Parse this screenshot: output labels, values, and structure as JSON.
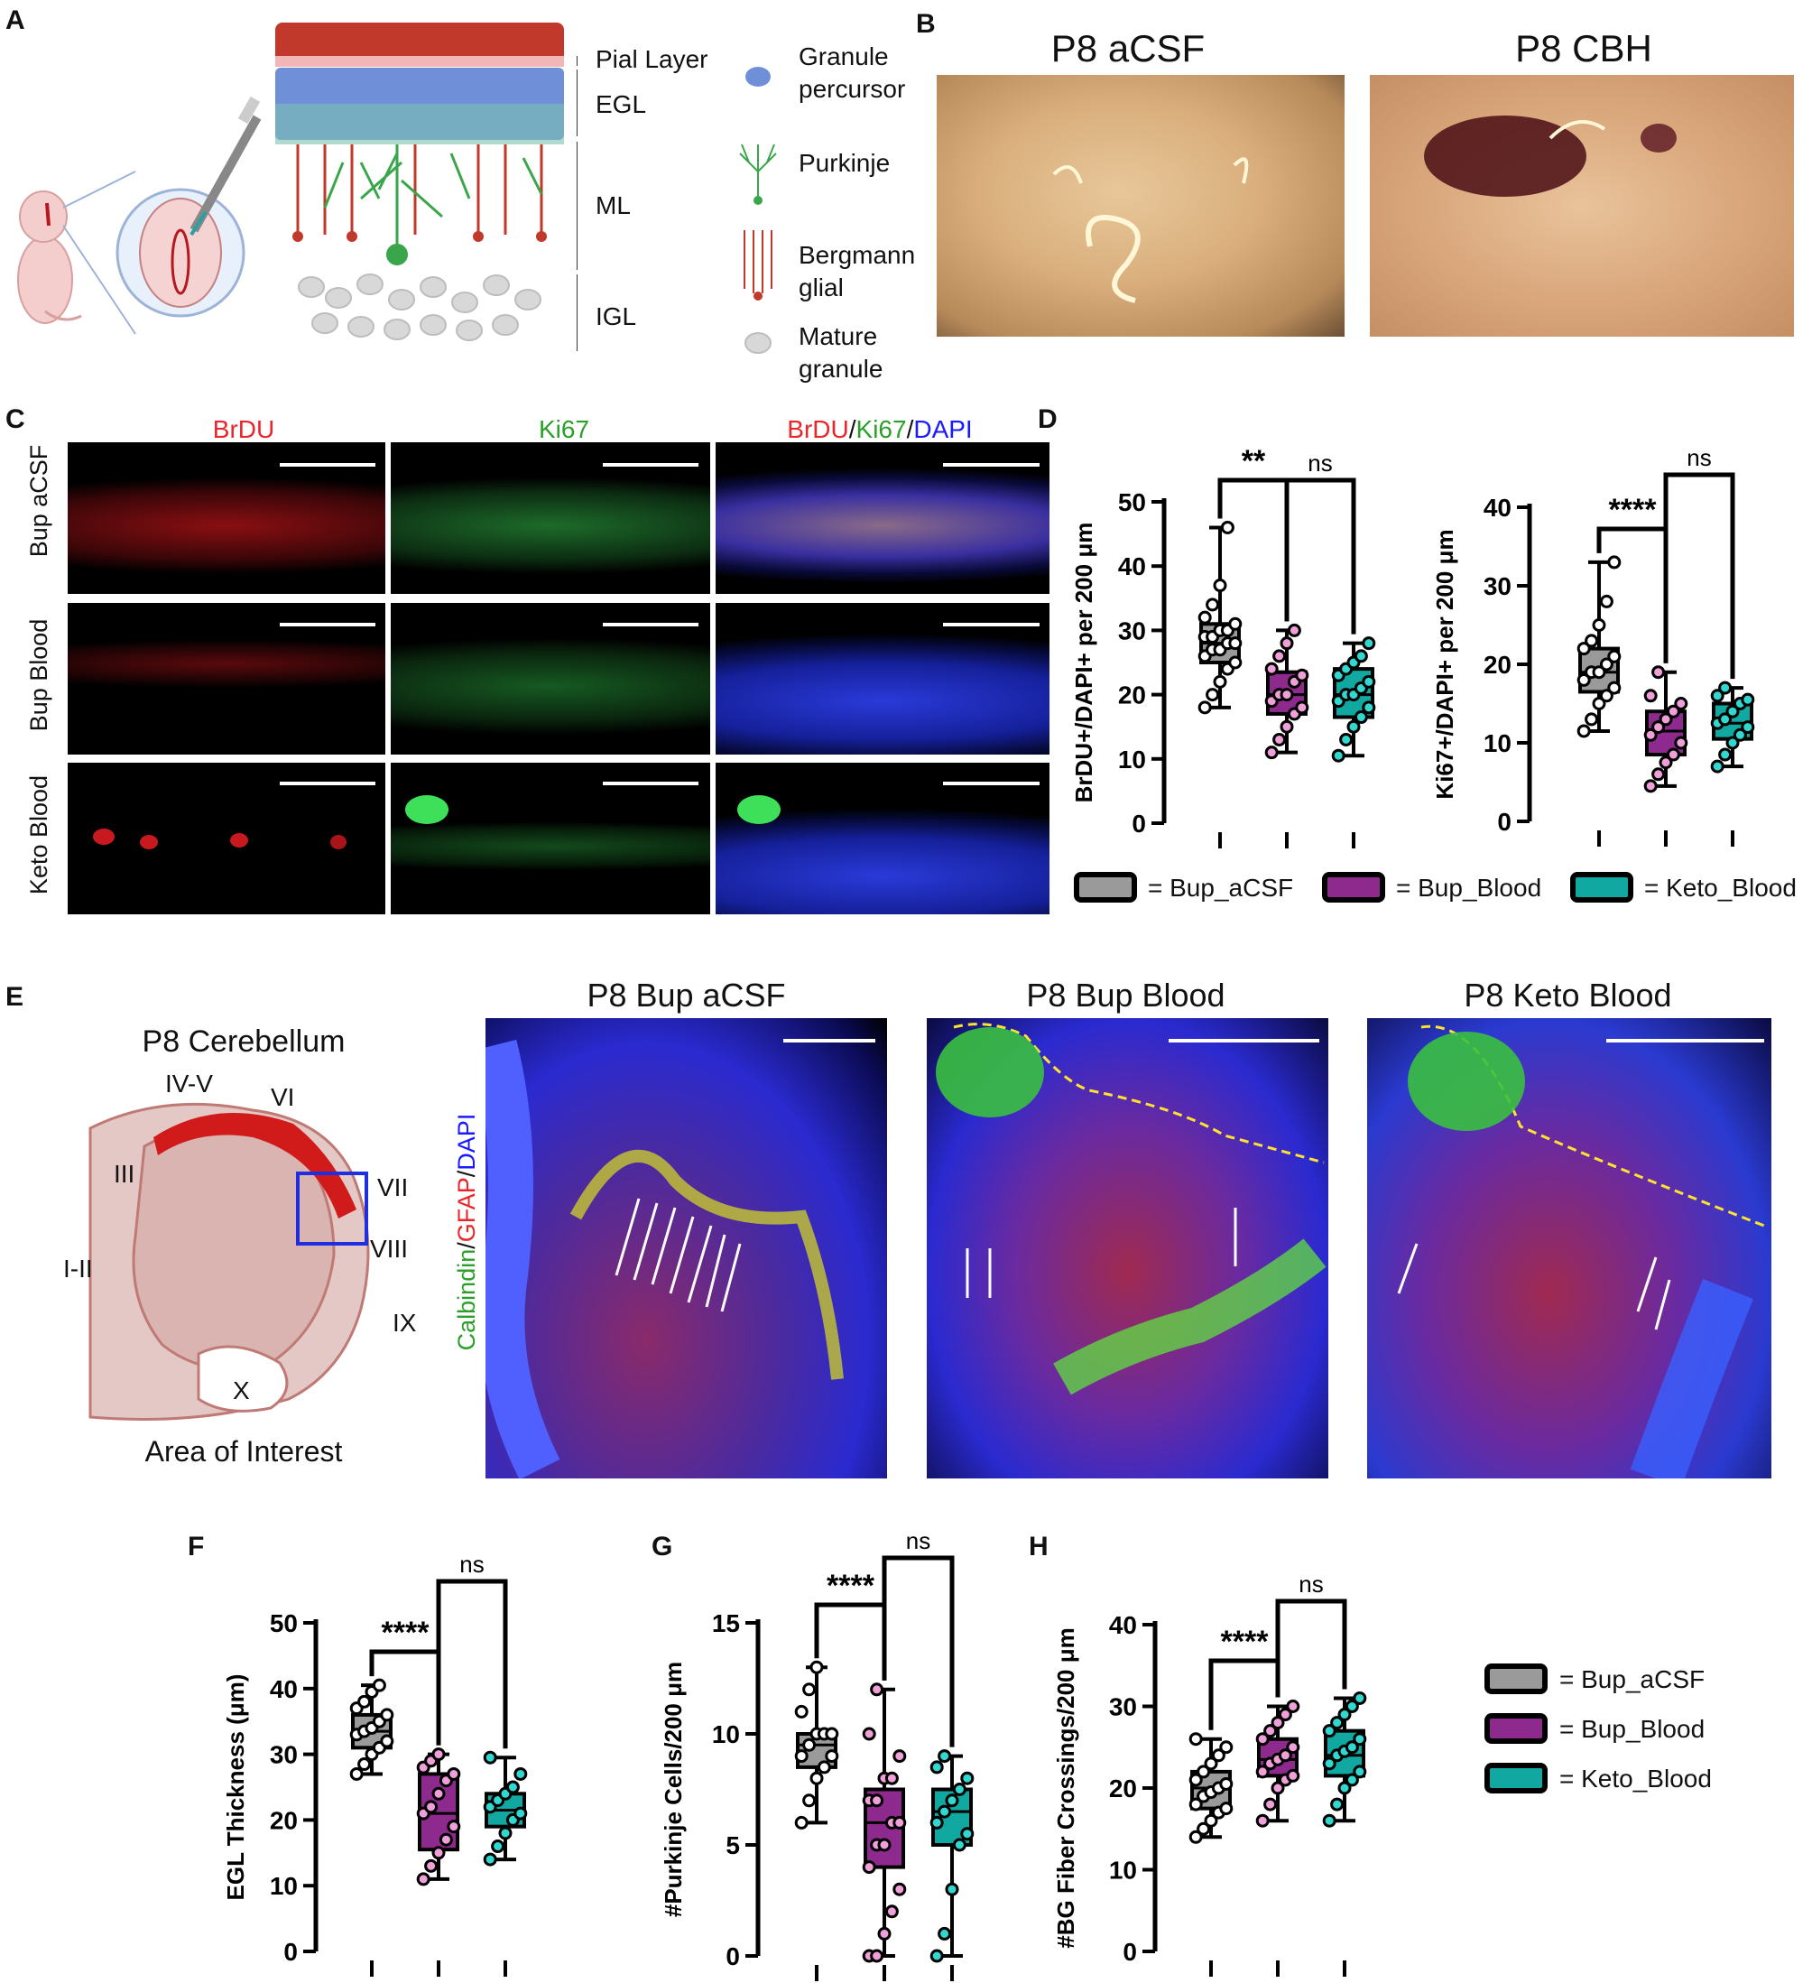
{
  "panel_labels": {
    "a": "A",
    "b": "B",
    "c": "C",
    "d": "D",
    "e": "E",
    "f": "F",
    "g": "G",
    "h": "H"
  },
  "panel_a": {
    "layers": [
      "Pial Layer",
      "EGL",
      "ML",
      "IGL"
    ],
    "cell_types": [
      "Granule percursor",
      "Purkinje",
      "Bergmann glial",
      "Mature granule"
    ],
    "cell_type_lines": [
      [
        "Granule",
        "percursor"
      ],
      [
        "Purkinje"
      ],
      [
        "Bergmann",
        "glial"
      ],
      [
        "Mature",
        "granule"
      ]
    ]
  },
  "panel_b": {
    "left_title": "P8 aCSF",
    "right_title": "P8 CBH"
  },
  "panel_c": {
    "col_titles": [
      "BrDU",
      "Ki67"
    ],
    "merge_title": {
      "brdu": "BrDU",
      "sep1": "/",
      "ki67": "Ki67",
      "sep2": "/",
      "dapi": "DAPI"
    },
    "row_labels": [
      "Bup aCSF",
      "Bup Blood",
      "Keto Blood"
    ]
  },
  "panel_e": {
    "diagram_title": "P8 Cerebellum",
    "lobules": [
      "IV-V",
      "VI",
      "III",
      "VII",
      "VIII",
      "I-II",
      "IX",
      "X"
    ],
    "diagram_caption": "Area of Interest",
    "image_titles": [
      "P8 Bup aCSF",
      "P8 Bup Blood",
      "P8 Keto Blood"
    ],
    "stain_label": {
      "calbindin": "Calbindin",
      "sep1": "/",
      "gfap": "GFAP",
      "sep2": "/",
      "dapi": "DAPI"
    }
  },
  "colors": {
    "bup_acsf": "#9a9a9a",
    "bup_blood": "#8e2a8e",
    "keto_blood": "#10a8a0",
    "brdu": "#e8262c",
    "ki67": "#2aa02a",
    "dapi": "#1a1aff"
  },
  "legend": {
    "bup_acsf": "= Bup_aCSF",
    "bup_blood": "= Bup_Blood",
    "keto_blood": "= Keto_Blood"
  },
  "chart_data": [
    {
      "type": "box",
      "panel": "D-left",
      "ylabel": "BrDU+/DAPI+ per 200 μm",
      "ylim": [
        0,
        50
      ],
      "yticks": [
        0,
        10,
        20,
        30,
        40,
        50
      ],
      "categories": [
        "Bup_aCSF",
        "Bup_Blood",
        "Keto_Blood"
      ],
      "boxes": [
        {
          "min": 18,
          "q1": 25,
          "median": 28,
          "q3": 31,
          "max": 46
        },
        {
          "min": 11,
          "q1": 17,
          "median": 20,
          "q3": 23.5,
          "max": 30
        },
        {
          "min": 10.5,
          "q1": 16.5,
          "median": 20,
          "q3": 24,
          "max": 28
        }
      ],
      "points": [
        [
          18,
          20,
          22,
          24,
          25,
          26,
          27,
          27,
          28,
          28,
          29,
          29,
          30,
          30,
          31,
          32,
          34,
          37,
          46
        ],
        [
          11,
          13,
          15,
          17,
          18,
          19,
          20,
          20,
          22,
          23,
          24,
          26,
          28,
          30
        ],
        [
          10.5,
          13,
          15,
          16.5,
          18,
          19,
          20,
          20,
          21,
          22,
          23,
          24,
          25,
          26,
          28
        ]
      ],
      "significance": [
        {
          "label": "**",
          "from": 0,
          "to": 1
        },
        {
          "label": "ns",
          "from": 1,
          "to": 2
        }
      ]
    },
    {
      "type": "box",
      "panel": "D-right",
      "ylabel": "Ki67+/DAPI+ per 200 μm",
      "ylim": [
        0,
        40
      ],
      "yticks": [
        0,
        10,
        20,
        30,
        40
      ],
      "categories": [
        "Bup_aCSF",
        "Bup_Blood",
        "Keto_Blood"
      ],
      "boxes": [
        {
          "min": 11.5,
          "q1": 16.5,
          "median": 19,
          "q3": 22,
          "max": 33
        },
        {
          "min": 4.5,
          "q1": 8.5,
          "median": 11.5,
          "q3": 14,
          "max": 19
        },
        {
          "min": 7,
          "q1": 10.5,
          "median": 12.5,
          "q3": 15,
          "max": 17
        }
      ],
      "points": [
        [
          11.5,
          13,
          15,
          16,
          17,
          18,
          19,
          19,
          20,
          21,
          22,
          23,
          25,
          28,
          33
        ],
        [
          4.5,
          6,
          7.5,
          8.5,
          10,
          11,
          12,
          13,
          14,
          15,
          16,
          19
        ],
        [
          7,
          8.5,
          10,
          11,
          12,
          12.5,
          13,
          14,
          15,
          15.5,
          16,
          17
        ]
      ],
      "significance": [
        {
          "label": "****",
          "from": 0,
          "to": 1
        },
        {
          "label": "ns",
          "from": 1,
          "to": 2
        }
      ]
    },
    {
      "type": "box",
      "panel": "F",
      "ylabel": "EGL Thickness (μm)",
      "ylim": [
        0,
        50
      ],
      "yticks": [
        0,
        10,
        20,
        30,
        40,
        50
      ],
      "categories": [
        "Bup_aCSF",
        "Bup_Blood",
        "Keto_Blood"
      ],
      "boxes": [
        {
          "min": 27,
          "q1": 31,
          "median": 33.5,
          "q3": 36,
          "max": 40.5
        },
        {
          "min": 11,
          "q1": 15.5,
          "median": 21,
          "q3": 27,
          "max": 30
        },
        {
          "min": 14,
          "q1": 19,
          "median": 21.5,
          "q3": 24,
          "max": 29.5
        }
      ],
      "points": [
        [
          27,
          28.5,
          30,
          31,
          32,
          33,
          33.5,
          34,
          35,
          36,
          37,
          38,
          39.5,
          40.5
        ],
        [
          11,
          13,
          15,
          17,
          19,
          21,
          22,
          24,
          26,
          27,
          28,
          29,
          30
        ],
        [
          14,
          16,
          18,
          20,
          21,
          22,
          23,
          24,
          25,
          27,
          29.5
        ]
      ],
      "significance": [
        {
          "label": "****",
          "from": 0,
          "to": 1
        },
        {
          "label": "ns",
          "from": 1,
          "to": 2
        }
      ]
    },
    {
      "type": "box",
      "panel": "G",
      "ylabel": "#Purkinje Cells/200 μm",
      "ylim": [
        0,
        15
      ],
      "yticks": [
        0,
        5,
        10,
        15
      ],
      "categories": [
        "Bup_aCSF",
        "Bup_Blood",
        "Keto_Blood"
      ],
      "boxes": [
        {
          "min": 6,
          "q1": 8.5,
          "median": 9.5,
          "q3": 10,
          "max": 13
        },
        {
          "min": 0,
          "q1": 4,
          "median": 6,
          "q3": 7.5,
          "max": 12
        },
        {
          "min": 0,
          "q1": 5,
          "median": 6.5,
          "q3": 7.5,
          "max": 9
        }
      ],
      "points": [
        [
          6,
          7,
          8,
          8.5,
          9,
          9,
          9.5,
          10,
          10,
          10,
          11,
          12,
          13
        ],
        [
          0,
          0,
          1,
          2,
          3,
          4,
          5,
          5,
          6,
          6,
          7,
          7,
          8,
          8,
          9,
          10,
          12
        ],
        [
          0,
          1,
          3,
          5,
          5.5,
          6,
          6.5,
          7,
          7.5,
          8,
          8.5,
          9
        ]
      ],
      "significance": [
        {
          "label": "****",
          "from": 0,
          "to": 1
        },
        {
          "label": "ns",
          "from": 1,
          "to": 2
        }
      ]
    },
    {
      "type": "box",
      "panel": "H",
      "ylabel": "#BG Fiber Crossings/200 μm",
      "ylim": [
        0,
        40
      ],
      "yticks": [
        0,
        10,
        20,
        30,
        40
      ],
      "categories": [
        "Bup_aCSF",
        "Bup_Blood",
        "Keto_Blood"
      ],
      "boxes": [
        {
          "min": 14,
          "q1": 17.5,
          "median": 20,
          "q3": 22,
          "max": 26
        },
        {
          "min": 16,
          "q1": 21.5,
          "median": 23.5,
          "q3": 26,
          "max": 30
        },
        {
          "min": 16,
          "q1": 21.5,
          "median": 24,
          "q3": 27,
          "max": 31
        }
      ],
      "points": [
        [
          14,
          15,
          16,
          17,
          17.5,
          18,
          19,
          19.5,
          20,
          20.5,
          21,
          22,
          23,
          24,
          25,
          26
        ],
        [
          16,
          18,
          20,
          21,
          21.5,
          22,
          23,
          23.5,
          24,
          25,
          26,
          27,
          28,
          29,
          30
        ],
        [
          16,
          18,
          20,
          21,
          22,
          23,
          24,
          24.5,
          25,
          26,
          27,
          28,
          29,
          30,
          31
        ]
      ],
      "significance": [
        {
          "label": "****",
          "from": 0,
          "to": 1
        },
        {
          "label": "ns",
          "from": 1,
          "to": 2
        }
      ]
    }
  ]
}
